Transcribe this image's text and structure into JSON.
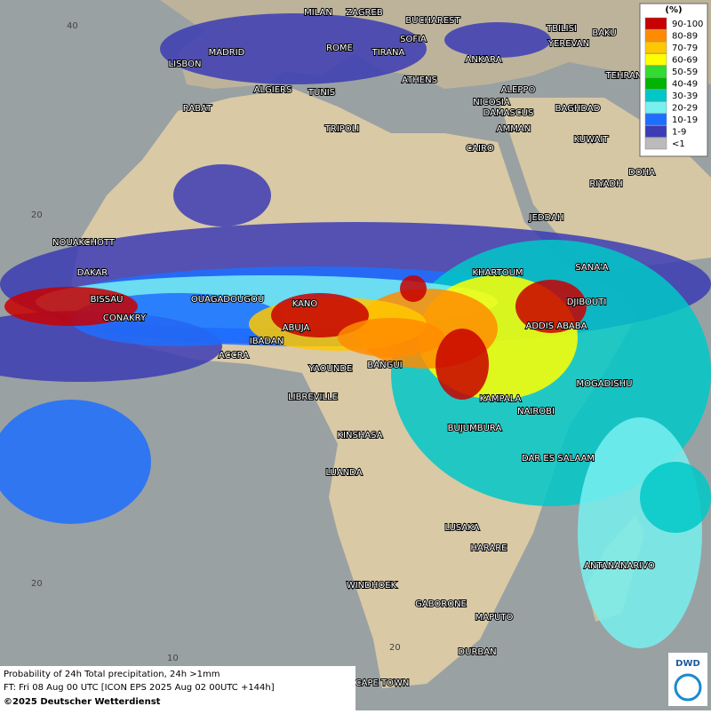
{
  "map": {
    "cities": [
      "MILAN",
      "ZAGREB",
      "BUCHAREST",
      "TBILISI",
      "BAKU",
      "SOFIA",
      "ROME",
      "TIRANA",
      "YEREVAN",
      "MADRID",
      "LISBON",
      "ANKARA",
      "ATHENS",
      "TEHRAN",
      "ALGIERS",
      "TUNIS",
      "ALEPPO",
      "RABAT",
      "NICOSIA",
      "BAGHDAD",
      "TRIPOLI",
      "DAMASCUS",
      "AMMAN",
      "KUWAIT",
      "CAIRO",
      "DOHA",
      "RIYADH",
      "JEDDAH",
      "NOUAKCHOTT",
      "KHARTOUM",
      "SANA'A",
      "DAKAR",
      "BISSAU",
      "OUAGADOUGOU",
      "KANO",
      "DJIBOUTI",
      "CONAKRY",
      "ABUJA",
      "ADDIS ABABA",
      "IBADAN",
      "ACCRA",
      "YAOUNDE",
      "BANGUI",
      "MOGADISHU",
      "LIBREVILLE",
      "KAMPALA",
      "NAIROBI",
      "BUJUMBURA",
      "KINSHASA",
      "DAR ES SALAAM",
      "LUANDA",
      "LUSAKA",
      "HARARE",
      "ANTANANARIVO",
      "WINDHOEK",
      "GABORONE",
      "MAPUTO",
      "DURBAN",
      "CAPE TOWN"
    ],
    "grid_labels": [
      "40",
      "20",
      "20",
      "10",
      "20"
    ]
  },
  "legend": {
    "title": "(%)",
    "entries": [
      {
        "label": "90-100",
        "color": "#c80000"
      },
      {
        "label": "80-89",
        "color": "#ff8c00"
      },
      {
        "label": "70-79",
        "color": "#ffc800"
      },
      {
        "label": "60-69",
        "color": "#ffff00"
      },
      {
        "label": "50-59",
        "color": "#32dc32"
      },
      {
        "label": "40-49",
        "color": "#00b400"
      },
      {
        "label": "30-39",
        "color": "#00c8c8"
      },
      {
        "label": "20-29",
        "color": "#78f0f0"
      },
      {
        "label": "10-19",
        "color": "#1e6eff"
      },
      {
        "label": "1-9",
        "color": "#3c3cb4"
      },
      {
        "label": "<1",
        "color": "#bbbbbb"
      }
    ]
  },
  "caption": {
    "line1": "Probability of 24h Total precipitation, 24h >1mm",
    "line2": "FT: Fri 08 Aug 00 UTC [ICON EPS 2025 Aug 02 00UTC +144h]",
    "line3": "©2025 Deutscher Wetterdienst"
  },
  "logo": "DWD"
}
